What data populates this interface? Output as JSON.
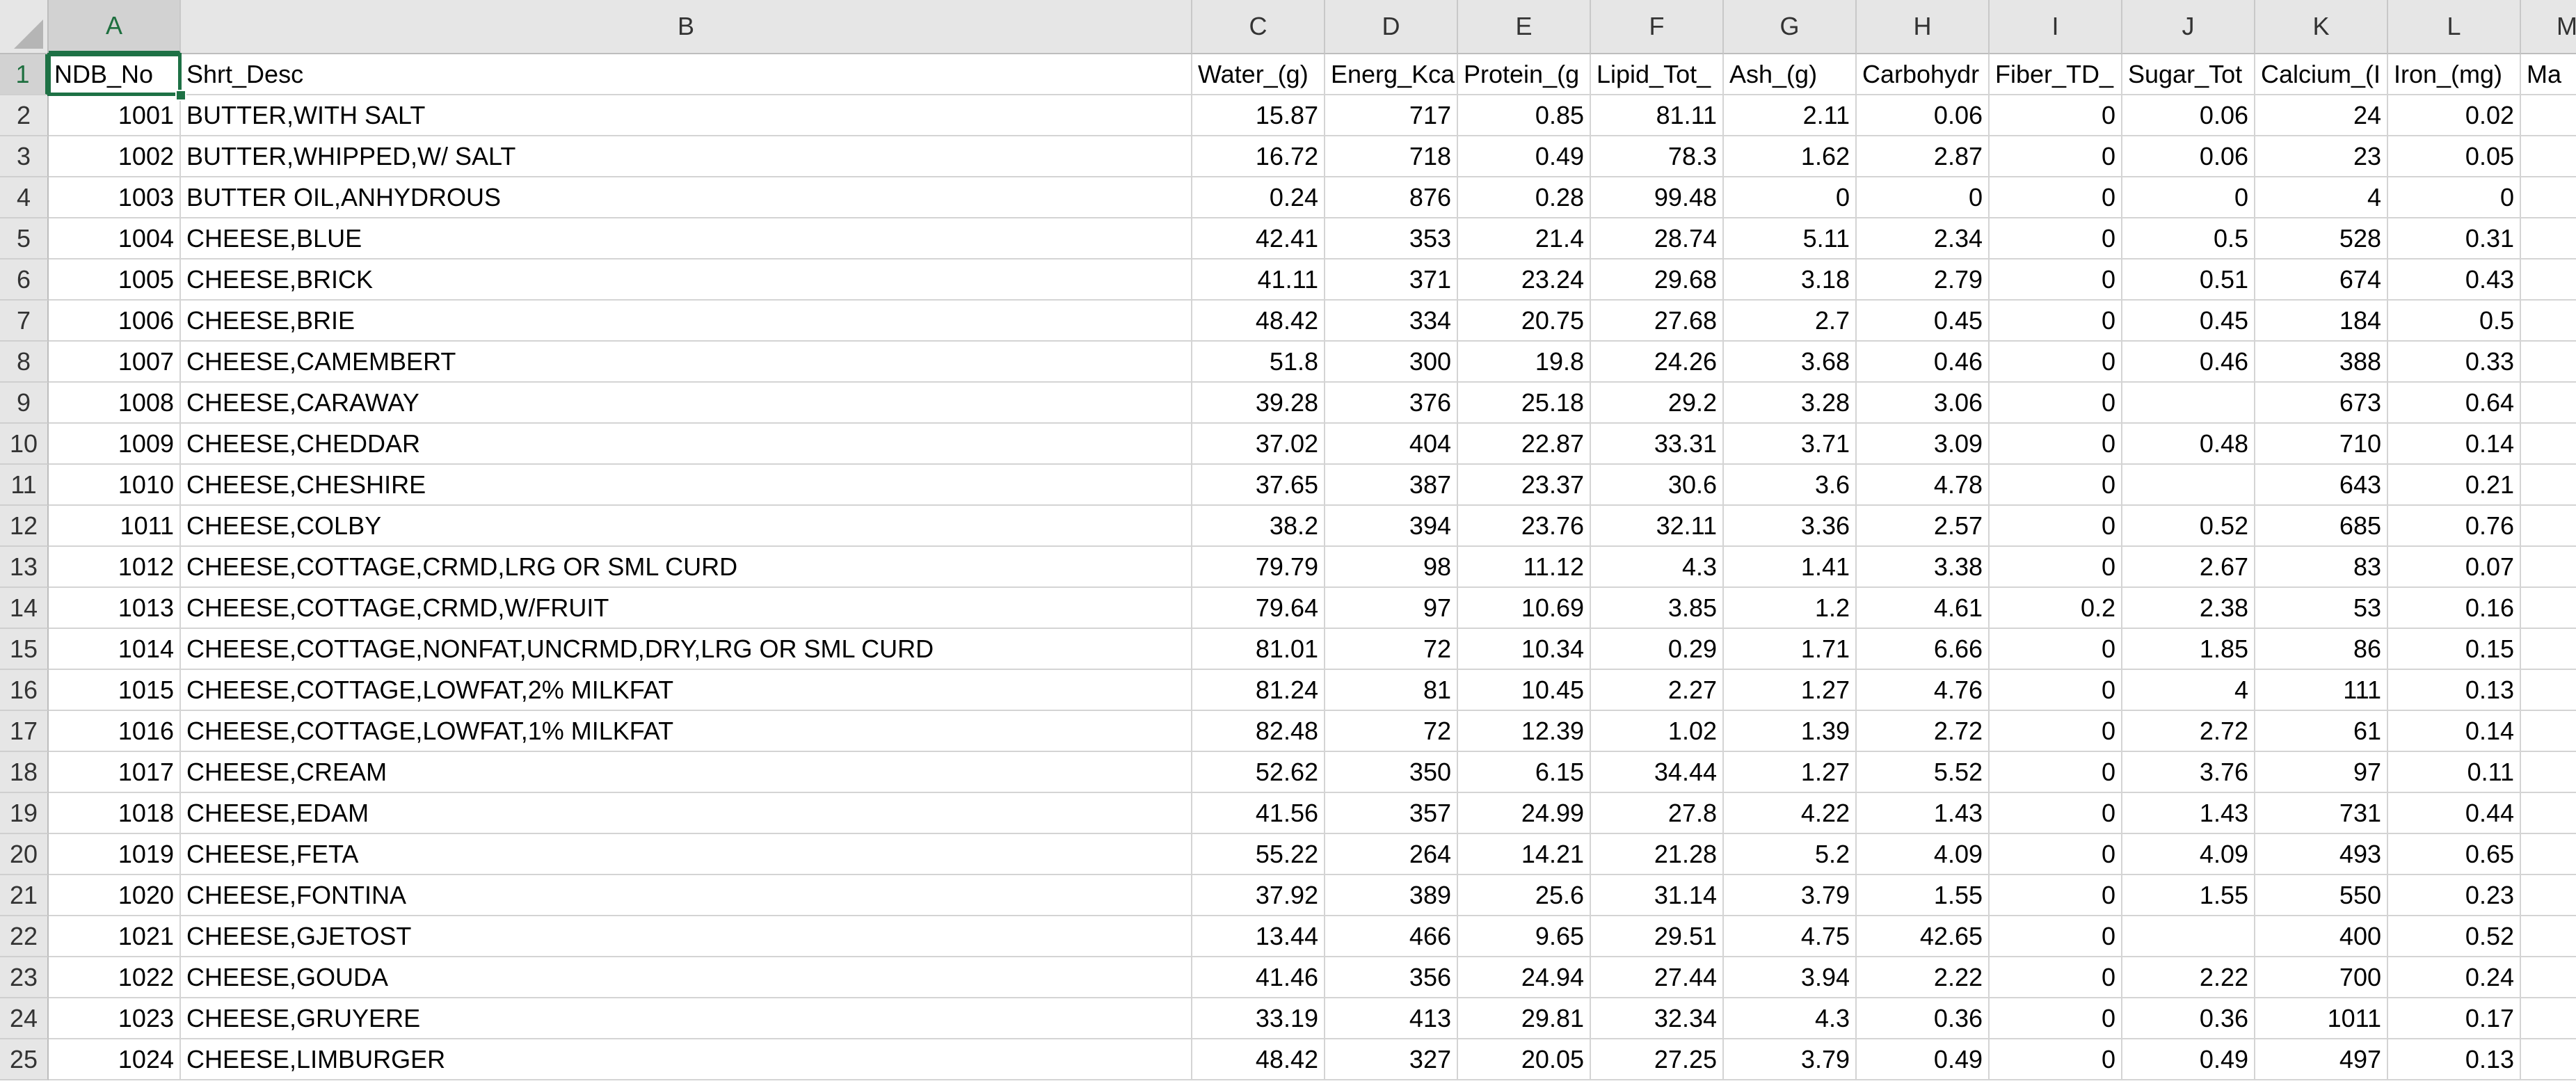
{
  "columns": [
    "A",
    "B",
    "C",
    "D",
    "E",
    "F",
    "G",
    "H",
    "I",
    "J",
    "K",
    "L"
  ],
  "partial_column_header": "Ma",
  "row_numbers": [
    "1",
    "2",
    "3",
    "4",
    "5",
    "6",
    "7",
    "8",
    "9",
    "10",
    "11",
    "12",
    "13",
    "14",
    "15",
    "16",
    "17",
    "18",
    "19",
    "20",
    "21",
    "22",
    "23",
    "24",
    "25"
  ],
  "active_cell": "A1",
  "rows": [
    [
      "NDB_No",
      "Shrt_Desc",
      "Water_(g)",
      "Energ_Kca",
      "Protein_(g",
      "Lipid_Tot_",
      "Ash_(g)",
      "Carbohydr",
      "Fiber_TD_",
      "Sugar_Tot",
      "Calcium_(I",
      "Iron_(mg)",
      "Ma"
    ],
    [
      "1001",
      "BUTTER,WITH SALT",
      "15.87",
      "717",
      "0.85",
      "81.11",
      "2.11",
      "0.06",
      "0",
      "0.06",
      "24",
      "0.02",
      ""
    ],
    [
      "1002",
      "BUTTER,WHIPPED,W/ SALT",
      "16.72",
      "718",
      "0.49",
      "78.3",
      "1.62",
      "2.87",
      "0",
      "0.06",
      "23",
      "0.05",
      ""
    ],
    [
      "1003",
      "BUTTER OIL,ANHYDROUS",
      "0.24",
      "876",
      "0.28",
      "99.48",
      "0",
      "0",
      "0",
      "0",
      "4",
      "0",
      ""
    ],
    [
      "1004",
      "CHEESE,BLUE",
      "42.41",
      "353",
      "21.4",
      "28.74",
      "5.11",
      "2.34",
      "0",
      "0.5",
      "528",
      "0.31",
      ""
    ],
    [
      "1005",
      "CHEESE,BRICK",
      "41.11",
      "371",
      "23.24",
      "29.68",
      "3.18",
      "2.79",
      "0",
      "0.51",
      "674",
      "0.43",
      ""
    ],
    [
      "1006",
      "CHEESE,BRIE",
      "48.42",
      "334",
      "20.75",
      "27.68",
      "2.7",
      "0.45",
      "0",
      "0.45",
      "184",
      "0.5",
      ""
    ],
    [
      "1007",
      "CHEESE,CAMEMBERT",
      "51.8",
      "300",
      "19.8",
      "24.26",
      "3.68",
      "0.46",
      "0",
      "0.46",
      "388",
      "0.33",
      ""
    ],
    [
      "1008",
      "CHEESE,CARAWAY",
      "39.28",
      "376",
      "25.18",
      "29.2",
      "3.28",
      "3.06",
      "0",
      "",
      "673",
      "0.64",
      ""
    ],
    [
      "1009",
      "CHEESE,CHEDDAR",
      "37.02",
      "404",
      "22.87",
      "33.31",
      "3.71",
      "3.09",
      "0",
      "0.48",
      "710",
      "0.14",
      ""
    ],
    [
      "1010",
      "CHEESE,CHESHIRE",
      "37.65",
      "387",
      "23.37",
      "30.6",
      "3.6",
      "4.78",
      "0",
      "",
      "643",
      "0.21",
      ""
    ],
    [
      "1011",
      "CHEESE,COLBY",
      "38.2",
      "394",
      "23.76",
      "32.11",
      "3.36",
      "2.57",
      "0",
      "0.52",
      "685",
      "0.76",
      ""
    ],
    [
      "1012",
      "CHEESE,COTTAGE,CRMD,LRG OR SML CURD",
      "79.79",
      "98",
      "11.12",
      "4.3",
      "1.41",
      "3.38",
      "0",
      "2.67",
      "83",
      "0.07",
      ""
    ],
    [
      "1013",
      "CHEESE,COTTAGE,CRMD,W/FRUIT",
      "79.64",
      "97",
      "10.69",
      "3.85",
      "1.2",
      "4.61",
      "0.2",
      "2.38",
      "53",
      "0.16",
      ""
    ],
    [
      "1014",
      "CHEESE,COTTAGE,NONFAT,UNCRMD,DRY,LRG OR SML CURD",
      "81.01",
      "72",
      "10.34",
      "0.29",
      "1.71",
      "6.66",
      "0",
      "1.85",
      "86",
      "0.15",
      ""
    ],
    [
      "1015",
      "CHEESE,COTTAGE,LOWFAT,2% MILKFAT",
      "81.24",
      "81",
      "10.45",
      "2.27",
      "1.27",
      "4.76",
      "0",
      "4",
      "111",
      "0.13",
      ""
    ],
    [
      "1016",
      "CHEESE,COTTAGE,LOWFAT,1% MILKFAT",
      "82.48",
      "72",
      "12.39",
      "1.02",
      "1.39",
      "2.72",
      "0",
      "2.72",
      "61",
      "0.14",
      ""
    ],
    [
      "1017",
      "CHEESE,CREAM",
      "52.62",
      "350",
      "6.15",
      "34.44",
      "1.27",
      "5.52",
      "0",
      "3.76",
      "97",
      "0.11",
      ""
    ],
    [
      "1018",
      "CHEESE,EDAM",
      "41.56",
      "357",
      "24.99",
      "27.8",
      "4.22",
      "1.43",
      "0",
      "1.43",
      "731",
      "0.44",
      ""
    ],
    [
      "1019",
      "CHEESE,FETA",
      "55.22",
      "264",
      "14.21",
      "21.28",
      "5.2",
      "4.09",
      "0",
      "4.09",
      "493",
      "0.65",
      ""
    ],
    [
      "1020",
      "CHEESE,FONTINA",
      "37.92",
      "389",
      "25.6",
      "31.14",
      "3.79",
      "1.55",
      "0",
      "1.55",
      "550",
      "0.23",
      ""
    ],
    [
      "1021",
      "CHEESE,GJETOST",
      "13.44",
      "466",
      "9.65",
      "29.51",
      "4.75",
      "42.65",
      "0",
      "",
      "400",
      "0.52",
      ""
    ],
    [
      "1022",
      "CHEESE,GOUDA",
      "41.46",
      "356",
      "24.94",
      "27.44",
      "3.94",
      "2.22",
      "0",
      "2.22",
      "700",
      "0.24",
      ""
    ],
    [
      "1023",
      "CHEESE,GRUYERE",
      "33.19",
      "413",
      "29.81",
      "32.34",
      "4.3",
      "0.36",
      "0",
      "0.36",
      "1011",
      "0.17",
      ""
    ],
    [
      "1024",
      "CHEESE,LIMBURGER",
      "48.42",
      "327",
      "20.05",
      "27.25",
      "3.79",
      "0.49",
      "0",
      "0.49",
      "497",
      "0.13",
      ""
    ]
  ]
}
